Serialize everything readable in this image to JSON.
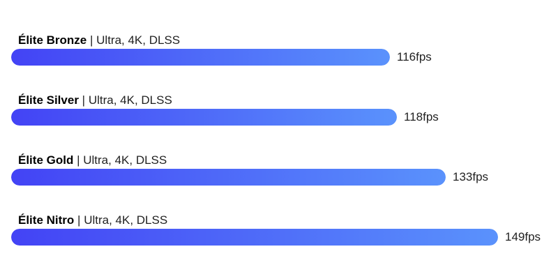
{
  "chart_data": {
    "type": "bar",
    "orientation": "horizontal",
    "categories": [
      "Élite Bronze",
      "Élite Silver",
      "Élite Gold",
      "Élite Nitro"
    ],
    "settings": "Ultra, 4K, DLSS",
    "separator": "|",
    "values": [
      116,
      118,
      133,
      149
    ],
    "value_unit": "fps",
    "value_labels": [
      "116fps",
      "118fps",
      "133fps",
      "149fps"
    ],
    "xlim": [
      0,
      149
    ],
    "grid": false,
    "legend": "none",
    "colors": {
      "bar_gradient_start": "#4343f5",
      "bar_gradient_end": "#5a92fc",
      "label_text": "#111111",
      "value_text": "#222222"
    }
  }
}
